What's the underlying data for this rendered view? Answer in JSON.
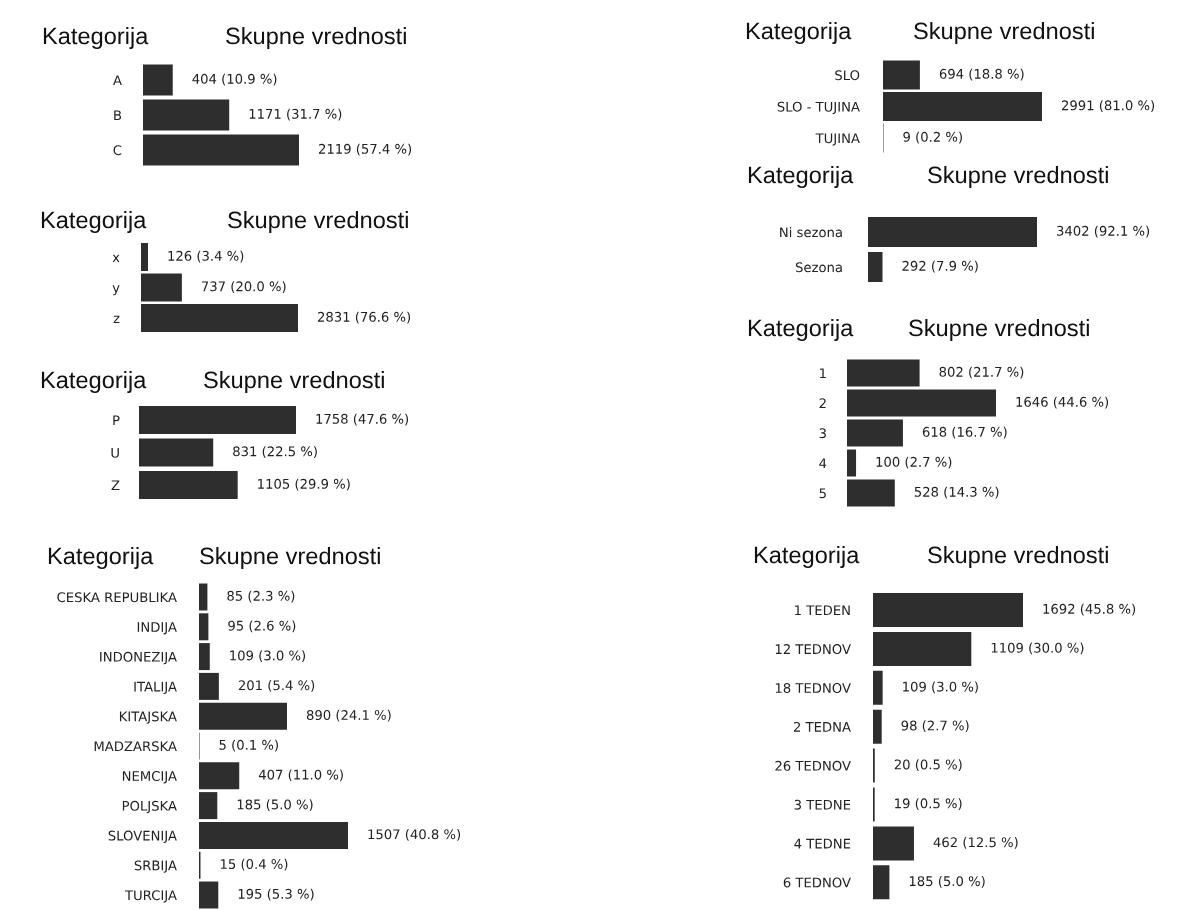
{
  "chart_data": [
    {
      "type": "bar",
      "orientation": "horizontal",
      "ylabel": "Kategorija",
      "xlabel": "Skupne vrednosti",
      "categories": [
        "A",
        "B",
        "C"
      ],
      "values": [
        404,
        1171,
        2119
      ],
      "value_labels": [
        "404 (10.9 %)",
        "1171 (31.7 %)",
        "2119 (57.4 %)"
      ],
      "color": "#2e2e2e",
      "tick_labels": "y"
    },
    {
      "type": "bar",
      "orientation": "horizontal",
      "ylabel": "Kategorija",
      "xlabel": "Skupne vrednosti",
      "categories": [
        "x",
        "y",
        "z"
      ],
      "values": [
        126,
        737,
        2831
      ],
      "value_labels": [
        "126 (3.4 %)",
        "737 (20.0 %)",
        "2831 (76.6 %)"
      ],
      "color": "#2e2e2e",
      "tick_labels": "y"
    },
    {
      "type": "bar",
      "orientation": "horizontal",
      "ylabel": "Kategorija",
      "xlabel": "Skupne vrednosti",
      "categories": [
        "P",
        "U",
        "Z"
      ],
      "values": [
        1758,
        831,
        1105
      ],
      "value_labels": [
        "1758 (47.6 %)",
        "831 (22.5 %)",
        "1105 (29.9 %)"
      ],
      "color": "#2e2e2e",
      "tick_labels": "y"
    },
    {
      "type": "bar",
      "orientation": "horizontal",
      "ylabel": "Kategorija",
      "xlabel": "Skupne vrednosti",
      "categories": [
        "CESKA REPUBLIKA",
        "INDIJA",
        "INDONEZIJA",
        "ITALIJA",
        "KITAJSKA",
        "MADZARSKA",
        "NEMCIJA",
        "POLJSKA",
        "SLOVENIJA",
        "SRBIJA",
        "TURCIJA"
      ],
      "values": [
        85,
        95,
        109,
        201,
        890,
        5,
        407,
        185,
        1507,
        15,
        195
      ],
      "value_labels": [
        "85 (2.3 %)",
        "95 (2.6 %)",
        "109 (3.0 %)",
        "201 (5.4 %)",
        "890 (24.1 %)",
        "5 (0.1 %)",
        "407 (11.0 %)",
        "185 (5.0 %)",
        "1507 (40.8 %)",
        "15 (0.4 %)",
        "195 (5.3 %)"
      ],
      "color": "#2e2e2e",
      "tick_labels": "y"
    },
    {
      "type": "bar",
      "orientation": "horizontal",
      "ylabel": "Kategorija",
      "xlabel": "Skupne vrednosti",
      "categories": [
        "SLO",
        "SLO - TUJINA",
        "TUJINA"
      ],
      "values": [
        694,
        2991,
        9
      ],
      "value_labels": [
        "694 (18.8 %)",
        "2991 (81.0 %)",
        "9 (0.2 %)"
      ],
      "color": "#2e2e2e",
      "tick_labels": "y"
    },
    {
      "type": "bar",
      "orientation": "horizontal",
      "ylabel": "Kategorija",
      "xlabel": "Skupne vrednosti",
      "categories": [
        "Ni sezona",
        "Sezona"
      ],
      "values": [
        3402,
        292
      ],
      "value_labels": [
        "3402 (92.1 %)",
        "292 (7.9 %)"
      ],
      "color": "#2e2e2e",
      "tick_labels": "y"
    },
    {
      "type": "bar",
      "orientation": "horizontal",
      "ylabel": "Kategorija",
      "xlabel": "Skupne vrednosti",
      "categories": [
        "1",
        "2",
        "3",
        "4",
        "5"
      ],
      "values": [
        802,
        1646,
        618,
        100,
        528
      ],
      "value_labels": [
        "802 (21.7 %)",
        "1646 (44.6 %)",
        "618 (16.7 %)",
        "100 (2.7 %)",
        "528 (14.3 %)"
      ],
      "color": "#2e2e2e",
      "tick_labels": "y"
    },
    {
      "type": "bar",
      "orientation": "horizontal",
      "ylabel": "Kategorija",
      "xlabel": "Skupne vrednosti",
      "categories": [
        "1 TEDEN",
        "12 TEDNOV",
        "18 TEDNOV",
        "2 TEDNA",
        "26 TEDNOV",
        "3 TEDNE",
        "4 TEDNE",
        "6 TEDNOV"
      ],
      "values": [
        1692,
        1109,
        109,
        98,
        20,
        19,
        462,
        185
      ],
      "value_labels": [
        "1692 (45.8 %)",
        "1109 (30.0 %)",
        "109 (3.0 %)",
        "98 (2.7 %)",
        "20 (0.5 %)",
        "19 (0.5 %)",
        "462 (12.5 %)",
        "185 (5.0 %)"
      ],
      "color": "#2e2e2e",
      "tick_labels": "y"
    }
  ]
}
